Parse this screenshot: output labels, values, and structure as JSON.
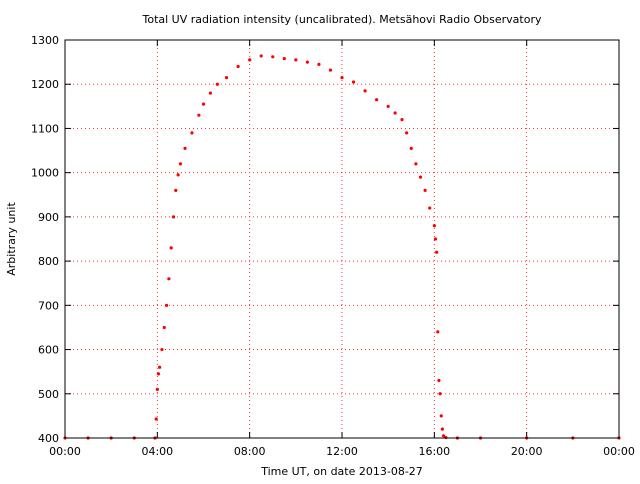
{
  "chart_data": {
    "type": "scatter",
    "title": "Total UV radiation intensity (uncalibrated). Metsähovi Radio Observatory",
    "xlabel": "Time UT, on date 2013-08-27",
    "ylabel": "Arbitrary unit",
    "xlim": [
      0,
      24
    ],
    "ylim": [
      400,
      1300
    ],
    "x_ticks": [
      0,
      4,
      8,
      12,
      16,
      20,
      24
    ],
    "x_tick_labels": [
      "00:00",
      "04:00",
      "08:00",
      "12:00",
      "16:00",
      "20:00",
      "00:00"
    ],
    "y_ticks": [
      400,
      500,
      600,
      700,
      800,
      900,
      1000,
      1100,
      1200,
      1300
    ],
    "y_tick_labels": [
      "400",
      "500",
      "600",
      "700",
      "800",
      "900",
      "1000",
      "1100",
      "1200",
      "1300"
    ],
    "grid": true,
    "marker_color": "#ff0000",
    "series": [
      {
        "x": [
          0.0,
          1.0,
          2.0,
          3.0,
          3.9,
          3.95,
          4.0,
          4.05,
          4.1,
          4.2,
          4.3,
          4.4,
          4.5,
          4.6,
          4.7,
          4.8,
          4.9,
          5.0,
          5.2,
          5.5,
          5.8,
          6.0,
          6.3,
          6.6,
          7.0,
          7.5,
          8.0,
          8.5,
          9.0,
          9.5,
          10.0,
          10.5,
          11.0,
          11.5,
          12.0,
          12.5,
          13.0,
          13.5,
          14.0,
          14.3,
          14.6,
          14.8,
          15.0,
          15.2,
          15.4,
          15.6,
          15.8,
          16.0,
          16.05,
          16.1,
          16.15,
          16.2,
          16.25,
          16.3,
          16.35,
          16.4,
          16.5,
          17.0,
          18.0,
          20.0,
          22.0,
          24.0
        ],
        "y": [
          400,
          400,
          400,
          400,
          400,
          443,
          510,
          545,
          560,
          600,
          650,
          700,
          760,
          830,
          900,
          960,
          995,
          1020,
          1055,
          1090,
          1130,
          1155,
          1180,
          1200,
          1215,
          1240,
          1255,
          1264,
          1262,
          1258,
          1255,
          1250,
          1245,
          1232,
          1215,
          1205,
          1185,
          1165,
          1150,
          1135,
          1120,
          1090,
          1055,
          1020,
          990,
          960,
          920,
          880,
          850,
          820,
          640,
          530,
          500,
          450,
          420,
          405,
          401,
          400,
          400,
          400,
          400,
          400
        ]
      }
    ]
  }
}
